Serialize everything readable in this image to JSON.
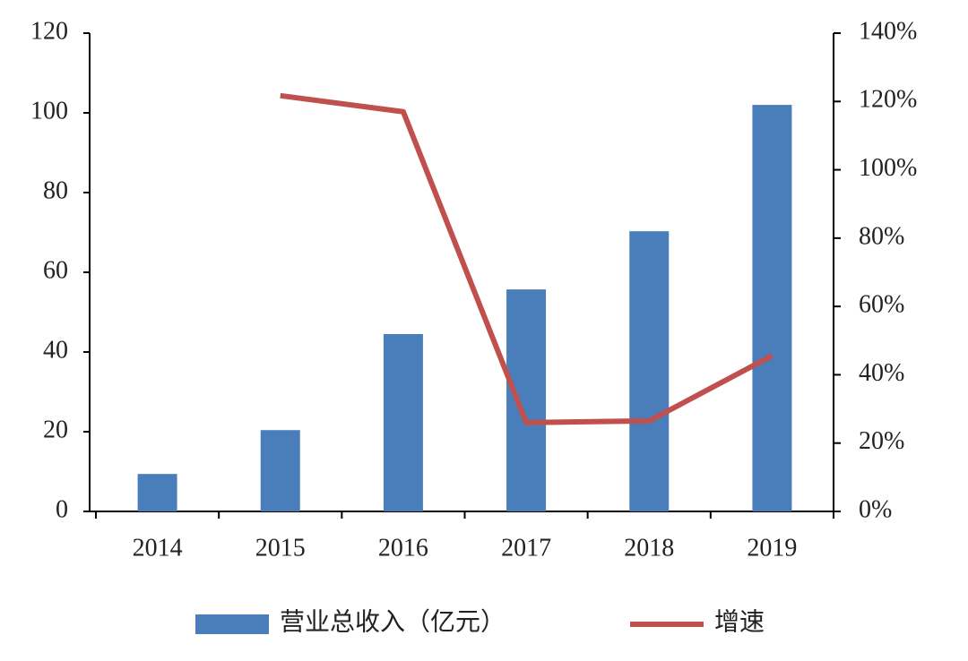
{
  "chart_data": {
    "type": "bar-line",
    "categories": [
      "2014",
      "2015",
      "2016",
      "2017",
      "2018",
      "2019"
    ],
    "series": [
      {
        "name": "营业总收入（亿元）",
        "color": "#4a7ebb",
        "type": "bar",
        "values": [
          9.4,
          20.4,
          44.5,
          55.7,
          70.3,
          102
        ]
      },
      {
        "name": "增速",
        "color": "#c0504d",
        "type": "line",
        "axis": "y2",
        "values": [
          null,
          121.7,
          117,
          26,
          26.5,
          45.6
        ]
      }
    ],
    "ylim": [
      0,
      120
    ],
    "yticks": [
      0,
      20,
      40,
      60,
      80,
      100,
      120
    ],
    "y2lim": [
      0,
      140
    ],
    "y2ticks": [
      {
        "value": 0,
        "label": "0%"
      },
      {
        "value": 20,
        "label": "20%"
      },
      {
        "value": 40,
        "label": "40%"
      },
      {
        "value": 60,
        "label": "60%"
      },
      {
        "value": 80,
        "label": "80%"
      },
      {
        "value": 100,
        "label": "100%"
      },
      {
        "value": 120,
        "label": "120%"
      },
      {
        "value": 140,
        "label": "140%"
      }
    ],
    "legend": "bottom"
  }
}
